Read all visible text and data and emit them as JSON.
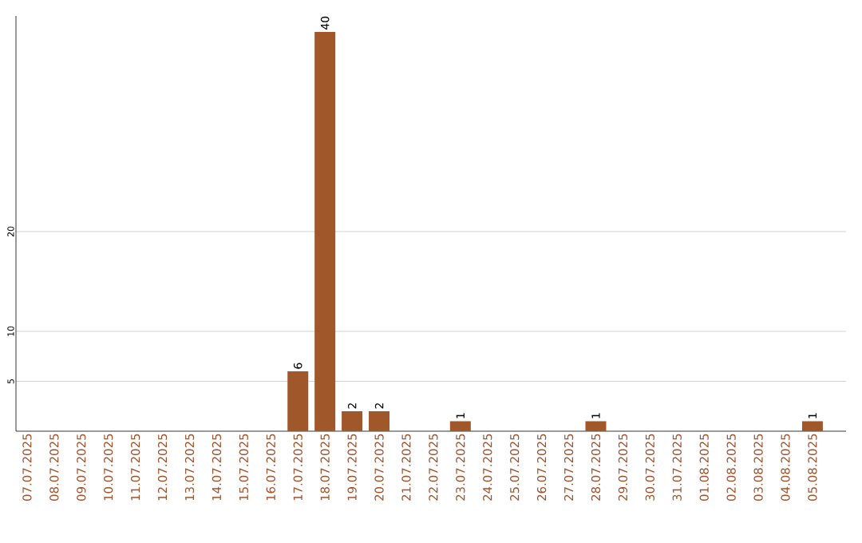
{
  "chart_data": {
    "type": "bar",
    "categories": [
      "07.07.2025",
      "08.07.2025",
      "09.07.2025",
      "10.07.2025",
      "11.07.2025",
      "12.07.2025",
      "13.07.2025",
      "14.07.2025",
      "15.07.2025",
      "16.07.2025",
      "17.07.2025",
      "18.07.2025",
      "19.07.2025",
      "20.07.2025",
      "21.07.2025",
      "22.07.2025",
      "23.07.2025",
      "24.07.2025",
      "25.07.2025",
      "26.07.2025",
      "27.07.2025",
      "28.07.2025",
      "29.07.2025",
      "30.07.2025",
      "31.07.2025",
      "01.08.2025",
      "02.08.2025",
      "03.08.2025",
      "04.08.2025",
      "05.08.2025"
    ],
    "values": [
      0,
      0,
      0,
      0,
      0,
      0,
      0,
      0,
      0,
      0,
      6,
      40,
      2,
      2,
      0,
      0,
      1,
      0,
      0,
      0,
      0,
      1,
      0,
      0,
      0,
      0,
      0,
      0,
      0,
      1
    ],
    "value_labels": [
      null,
      null,
      null,
      null,
      null,
      null,
      null,
      null,
      null,
      null,
      "6",
      "40",
      "2",
      "2",
      null,
      null,
      "1",
      null,
      null,
      null,
      null,
      "1",
      null,
      null,
      null,
      null,
      null,
      null,
      null,
      "1"
    ],
    "color": "#a0572a",
    "ylim": [
      0,
      41.6
    ],
    "yticks": [
      5,
      10,
      20
    ],
    "grid": "y"
  }
}
